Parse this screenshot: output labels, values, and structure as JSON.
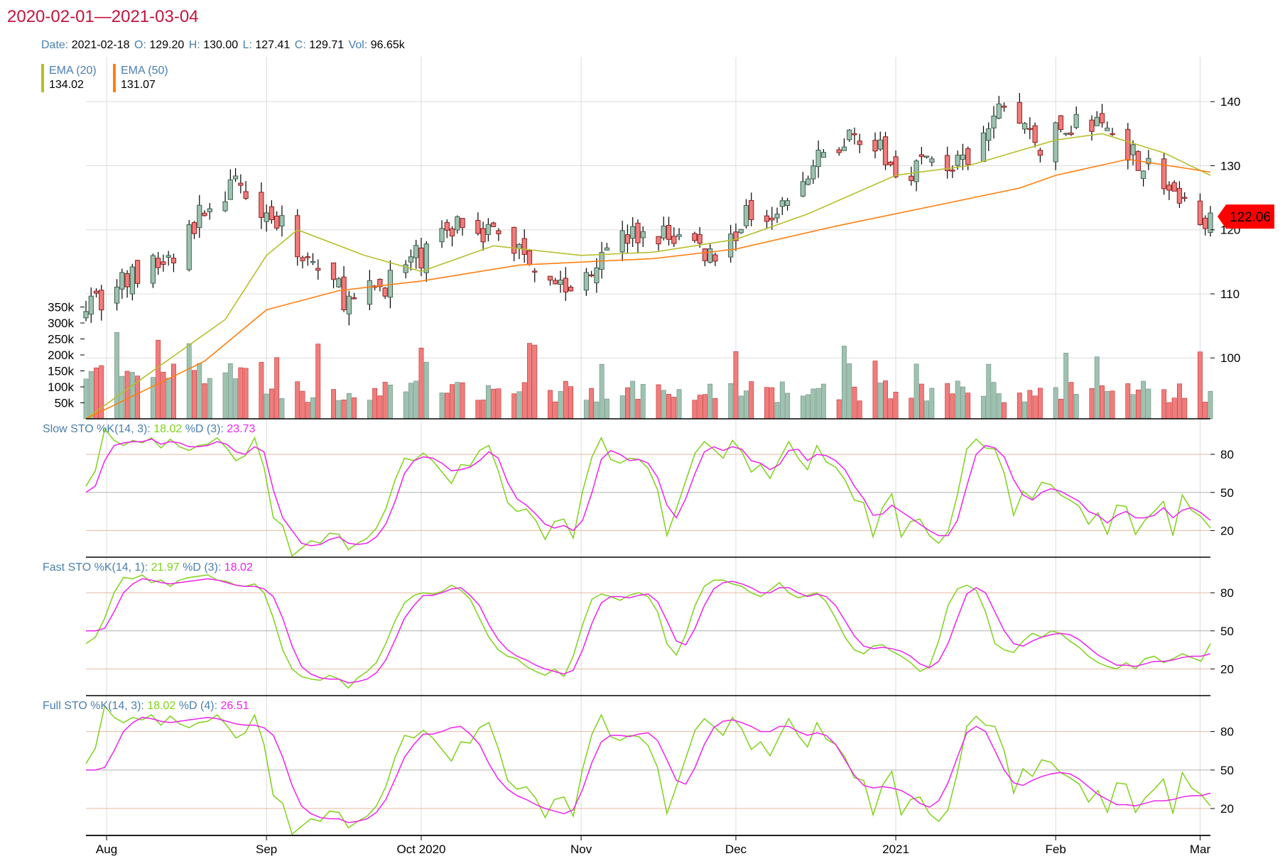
{
  "header": {
    "date_range": "2020-02-01—2021-03-04",
    "date_range_color": "#c2143c",
    "ohlc": [
      {
        "label": "Date:",
        "value": "2021-02-18"
      },
      {
        "label": "O:",
        "value": "129.20"
      },
      {
        "label": "H:",
        "value": "130.00"
      },
      {
        "label": "L:",
        "value": "127.41"
      },
      {
        "label": "C:",
        "value": "129.71"
      },
      {
        "label": "Vol:",
        "value": "96.65k"
      }
    ]
  },
  "legend": [
    {
      "name": "EMA (20)",
      "value": "134.02",
      "color": "#b5bf2a"
    },
    {
      "name": "EMA (50)",
      "value": "131.07",
      "color": "#ff7f0e"
    }
  ],
  "last_price": {
    "label": "122.06",
    "value": 122.06,
    "color": "#ff0000"
  },
  "colors": {
    "up": "#9ec2b0",
    "down": "#f07c7c",
    "up_stroke": "#3f5f4f",
    "down_stroke": "#8b2020",
    "k": "#7fd11b",
    "d": "#ee22ee"
  },
  "panels": [
    {
      "title": "Slow STO",
      "params": "%K(14, 3):",
      "k_value": "18.02",
      "d_label": "%D (3):",
      "d_value": "23.73"
    },
    {
      "title": "Fast STO",
      "params": "%K(14, 1):",
      "k_value": "21.97",
      "d_label": "%D (3):",
      "d_value": "18.02"
    },
    {
      "title": "Full STO",
      "params": "%K(14, 3):",
      "k_value": "18.02",
      "d_label": "%D (4):",
      "d_value": "26.51"
    }
  ],
  "chart_data": {
    "type": "candlestick",
    "x_ticks": [
      "Aug",
      "Sep",
      "Oct 2020",
      "Nov",
      "Dec",
      "2021",
      "Feb",
      "Mar"
    ],
    "x_tick_dates": [
      "2020-08-01",
      "2020-09-01",
      "2020-10-01",
      "2020-11-01",
      "2020-12-01",
      "2021-01-01",
      "2021-02-01",
      "2021-03-01"
    ],
    "x_range": [
      "2020-07-28",
      "2021-03-03"
    ],
    "price_ticks": [
      100,
      110,
      120,
      130,
      140
    ],
    "price_range": [
      90.5,
      147
    ],
    "volume_ticks": [
      "50k",
      "100k",
      "150k",
      "200k",
      "250k",
      "300k",
      "350k"
    ],
    "volume_tick_values": [
      50000,
      100000,
      150000,
      200000,
      250000,
      300000,
      350000
    ],
    "volume_range": [
      0,
      400000
    ],
    "stochastic_ticks": [
      20,
      50,
      80
    ],
    "stochastic_range": [
      -1,
      108
    ],
    "weekly_close": [
      [
        "2020-07-31",
        109.5
      ],
      [
        "2020-08-07",
        113.0
      ],
      [
        "2020-08-14",
        115.5
      ],
      [
        "2020-08-21",
        124.5
      ],
      [
        "2020-08-28",
        127.0
      ],
      [
        "2020-09-04",
        120.0
      ],
      [
        "2020-09-11",
        114.0
      ],
      [
        "2020-09-18",
        108.0
      ],
      [
        "2020-09-25",
        112.5
      ],
      [
        "2020-10-02",
        116.5
      ],
      [
        "2020-10-09",
        122.0
      ],
      [
        "2020-10-16",
        119.0
      ],
      [
        "2020-10-23",
        115.5
      ],
      [
        "2020-10-30",
        110.0
      ],
      [
        "2020-11-06",
        118.5
      ],
      [
        "2020-11-13",
        119.0
      ],
      [
        "2020-11-20",
        119.0
      ],
      [
        "2020-11-27",
        116.0
      ],
      [
        "2020-12-04",
        123.0
      ],
      [
        "2020-12-11",
        124.0
      ],
      [
        "2020-12-18",
        131.5
      ],
      [
        "2020-12-25",
        135.5
      ],
      [
        "2021-01-01",
        129.0
      ],
      [
        "2021-01-08",
        131.0
      ],
      [
        "2021-01-15",
        129.5
      ],
      [
        "2021-01-22",
        140.0
      ],
      [
        "2021-01-29",
        133.0
      ],
      [
        "2021-02-05",
        137.0
      ],
      [
        "2021-02-12",
        135.5
      ],
      [
        "2021-02-19",
        129.7
      ],
      [
        "2021-02-26",
        123.5
      ],
      [
        "2021-03-03",
        122.06
      ]
    ],
    "ema20": [
      [
        "2020-07-28",
        90.5
      ],
      [
        "2020-08-10",
        98.0
      ],
      [
        "2020-08-24",
        106.0
      ],
      [
        "2020-09-01",
        116.0
      ],
      [
        "2020-09-07",
        120.0
      ],
      [
        "2020-09-20",
        116.0
      ],
      [
        "2020-10-01",
        113.5
      ],
      [
        "2020-10-15",
        117.5
      ],
      [
        "2020-11-01",
        116.0
      ],
      [
        "2020-11-15",
        116.5
      ],
      [
        "2020-12-01",
        118.5
      ],
      [
        "2020-12-15",
        122.5
      ],
      [
        "2021-01-01",
        128.5
      ],
      [
        "2021-01-15",
        130.0
      ],
      [
        "2021-02-01",
        134.0
      ],
      [
        "2021-02-10",
        135.0
      ],
      [
        "2021-02-22",
        132.0
      ],
      [
        "2021-03-03",
        128.5
      ]
    ],
    "ema50": [
      [
        "2020-07-28",
        90.5
      ],
      [
        "2020-08-20",
        99.5
      ],
      [
        "2020-09-01",
        107.5
      ],
      [
        "2020-09-15",
        110.5
      ],
      [
        "2020-10-01",
        112.0
      ],
      [
        "2020-10-20",
        114.5
      ],
      [
        "2020-11-15",
        115.5
      ],
      [
        "2020-12-01",
        117.0
      ],
      [
        "2020-12-20",
        120.5
      ],
      [
        "2021-01-10",
        124.0
      ],
      [
        "2021-01-25",
        126.5
      ],
      [
        "2021-02-01",
        128.5
      ],
      [
        "2021-02-15",
        131.0
      ],
      [
        "2021-03-03",
        129.0
      ]
    ],
    "series": [
      {
        "name": "EMA (20)",
        "color": "#b5bf2a"
      },
      {
        "name": "EMA (50)",
        "color": "#ff7f0e"
      },
      {
        "name": "%K",
        "color": "#7fd11b"
      },
      {
        "name": "%D",
        "color": "#ee22ee"
      }
    ],
    "stochastic": {
      "slow_k": [
        55,
        67,
        100,
        91,
        87,
        91,
        89,
        93,
        85,
        92,
        86,
        83,
        87,
        88,
        93,
        85,
        75,
        79,
        93,
        70,
        30,
        24,
        0,
        6,
        12,
        10,
        18,
        17,
        5,
        10,
        14,
        22,
        37,
        60,
        77,
        75,
        81,
        75,
        66,
        57,
        72,
        71,
        83,
        87,
        67,
        42,
        35,
        37,
        28,
        13,
        27,
        29,
        14,
        51,
        78,
        93,
        76,
        73,
        77,
        76,
        69,
        52,
        16,
        37,
        59,
        81,
        90,
        84,
        77,
        91,
        82,
        66,
        72,
        61,
        76,
        90,
        77,
        68,
        87,
        74,
        70,
        60,
        44,
        42,
        15,
        38,
        49,
        15,
        27,
        29,
        16,
        10,
        19,
        48,
        84,
        92,
        85,
        84,
        65,
        32,
        51,
        45,
        58,
        56,
        48,
        44,
        39,
        25,
        34,
        17,
        40,
        39,
        17,
        28,
        35,
        43,
        16,
        48,
        36,
        31,
        22
      ],
      "slow_d": [
        50,
        55,
        75,
        87,
        89,
        90,
        90,
        92,
        88,
        90,
        89,
        86,
        86,
        87,
        90,
        88,
        82,
        80,
        86,
        82,
        52,
        30,
        20,
        10,
        8,
        9,
        13,
        15,
        10,
        9,
        10,
        15,
        25,
        43,
        65,
        75,
        78,
        77,
        73,
        67,
        68,
        70,
        75,
        82,
        77,
        58,
        45,
        40,
        33,
        25,
        22,
        24,
        20,
        28,
        50,
        76,
        83,
        80,
        75,
        76,
        73,
        62,
        40,
        30,
        45,
        65,
        82,
        86,
        83,
        86,
        84,
        75,
        73,
        68,
        72,
        83,
        84,
        75,
        80,
        79,
        75,
        68,
        55,
        45,
        32,
        33,
        40,
        35,
        30,
        25,
        20,
        16,
        16,
        28,
        55,
        80,
        87,
        85,
        78,
        60,
        48,
        44,
        50,
        53,
        51,
        47,
        43,
        35,
        32,
        26,
        32,
        35,
        30,
        30,
        32,
        38,
        30,
        36,
        38,
        34,
        28
      ],
      "fast_k": [
        40,
        45,
        60,
        80,
        92,
        91,
        94,
        88,
        90,
        85,
        90,
        92,
        93,
        94,
        90,
        89,
        86,
        85,
        87,
        80,
        60,
        35,
        20,
        14,
        12,
        11,
        15,
        12,
        5,
        13,
        18,
        25,
        40,
        58,
        72,
        78,
        80,
        79,
        81,
        86,
        82,
        75,
        60,
        45,
        35,
        30,
        28,
        22,
        18,
        15,
        20,
        14,
        30,
        55,
        75,
        79,
        77,
        74,
        78,
        80,
        77,
        65,
        40,
        31,
        47,
        70,
        85,
        90,
        90,
        87,
        85,
        80,
        77,
        82,
        88,
        80,
        76,
        78,
        80,
        73,
        60,
        45,
        35,
        32,
        38,
        39,
        34,
        30,
        25,
        18,
        22,
        42,
        70,
        83,
        86,
        82,
        65,
        40,
        35,
        33,
        42,
        48,
        45,
        50,
        48,
        42,
        37,
        30,
        25,
        22,
        20,
        25,
        20,
        28,
        30,
        25,
        28,
        32,
        29,
        26,
        40
      ],
      "fast_d": [
        50,
        50,
        52,
        65,
        80,
        87,
        91,
        90,
        88,
        87,
        88,
        89,
        90,
        91,
        90,
        88,
        86,
        85,
        85,
        83,
        77,
        60,
        38,
        22,
        16,
        13,
        12,
        12,
        9,
        10,
        12,
        17,
        27,
        43,
        60,
        70,
        78,
        78,
        80,
        83,
        84,
        78,
        70,
        55,
        43,
        35,
        30,
        27,
        23,
        20,
        18,
        16,
        19,
        35,
        56,
        72,
        77,
        77,
        76,
        78,
        79,
        73,
        58,
        42,
        39,
        52,
        70,
        83,
        88,
        89,
        87,
        84,
        80,
        80,
        84,
        84,
        80,
        77,
        79,
        77,
        70,
        58,
        46,
        38,
        36,
        37,
        36,
        34,
        30,
        24,
        21,
        26,
        40,
        60,
        79,
        84,
        80,
        65,
        50,
        40,
        38,
        42,
        45,
        47,
        48,
        47,
        43,
        37,
        31,
        27,
        23,
        23,
        22,
        24,
        26,
        26,
        27,
        29,
        30,
        30,
        32
      ]
    }
  }
}
